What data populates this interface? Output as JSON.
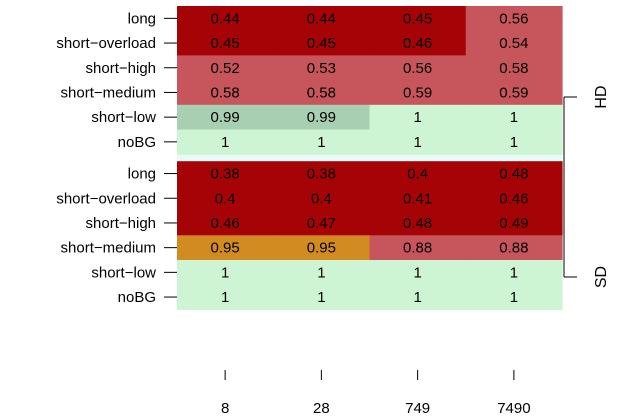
{
  "chart_data": {
    "type": "heatmap",
    "title": "",
    "xlabel": "",
    "ylabel": "",
    "columns": [
      "8",
      "28",
      "749",
      "7490"
    ],
    "groups": [
      {
        "label": "HD",
        "rows": [
          {
            "label": "long",
            "values": [
              0.44,
              0.44,
              0.45,
              0.56
            ],
            "value_labels": [
              "0.44",
              "0.44",
              "0.45",
              "0.56"
            ],
            "colors": [
              "#a50306",
              "#a50306",
              "#a50306",
              "#c7555c"
            ]
          },
          {
            "label": "short−overload",
            "values": [
              0.45,
              0.45,
              0.46,
              0.54
            ],
            "value_labels": [
              "0.45",
              "0.45",
              "0.46",
              "0.54"
            ],
            "colors": [
              "#a50306",
              "#a50306",
              "#a50306",
              "#c7555c"
            ]
          },
          {
            "label": "short−high",
            "values": [
              0.52,
              0.53,
              0.56,
              0.58
            ],
            "value_labels": [
              "0.52",
              "0.53",
              "0.56",
              "0.58"
            ],
            "colors": [
              "#c7555c",
              "#c7555c",
              "#c7555c",
              "#c7555c"
            ]
          },
          {
            "label": "short−medium",
            "values": [
              0.58,
              0.58,
              0.59,
              0.59
            ],
            "value_labels": [
              "0.58",
              "0.58",
              "0.59",
              "0.59"
            ],
            "colors": [
              "#c7555c",
              "#c7555c",
              "#c7555c",
              "#c7555c"
            ]
          },
          {
            "label": "short−low",
            "values": [
              0.99,
              0.99,
              1,
              1
            ],
            "value_labels": [
              "0.99",
              "0.99",
              "1",
              "1"
            ],
            "colors": [
              "#a9cfb2",
              "#a9cfb2",
              "#cef5d3",
              "#cef5d3"
            ]
          },
          {
            "label": "noBG",
            "values": [
              1,
              1,
              1,
              1
            ],
            "value_labels": [
              "1",
              "1",
              "1",
              "1"
            ],
            "colors": [
              "#cef5d3",
              "#cef5d3",
              "#cef5d3",
              "#cef5d3"
            ]
          }
        ]
      },
      {
        "label": "SD",
        "rows": [
          {
            "label": "long",
            "values": [
              0.38,
              0.38,
              0.4,
              0.48
            ],
            "value_labels": [
              "0.38",
              "0.38",
              "0.4",
              "0.48"
            ],
            "colors": [
              "#a50306",
              "#a50306",
              "#a50306",
              "#a50306"
            ]
          },
          {
            "label": "short−overload",
            "values": [
              0.4,
              0.4,
              0.41,
              0.46
            ],
            "value_labels": [
              "0.4",
              "0.4",
              "0.41",
              "0.46"
            ],
            "colors": [
              "#a50306",
              "#a50306",
              "#a50306",
              "#a50306"
            ]
          },
          {
            "label": "short−high",
            "values": [
              0.46,
              0.47,
              0.48,
              0.49
            ],
            "value_labels": [
              "0.46",
              "0.47",
              "0.48",
              "0.49"
            ],
            "colors": [
              "#a50306",
              "#a50306",
              "#a50306",
              "#a50306"
            ]
          },
          {
            "label": "short−medium",
            "values": [
              0.95,
              0.95,
              0.88,
              0.88
            ],
            "value_labels": [
              "0.95",
              "0.95",
              "0.88",
              "0.88"
            ],
            "colors": [
              "#d28b20",
              "#d28b20",
              "#c7555c",
              "#c7555c"
            ]
          },
          {
            "label": "short−low",
            "values": [
              1,
              1,
              1,
              1
            ],
            "value_labels": [
              "1",
              "1",
              "1",
              "1"
            ],
            "colors": [
              "#cef5d3",
              "#cef5d3",
              "#cef5d3",
              "#cef5d3"
            ]
          },
          {
            "label": "noBG",
            "values": [
              1,
              1,
              1,
              1
            ],
            "value_labels": [
              "1",
              "1",
              "1",
              "1"
            ],
            "colors": [
              "#cef5d3",
              "#cef5d3",
              "#cef5d3",
              "#cef5d3"
            ]
          }
        ]
      }
    ],
    "gap_color": "#e6fbfb"
  }
}
